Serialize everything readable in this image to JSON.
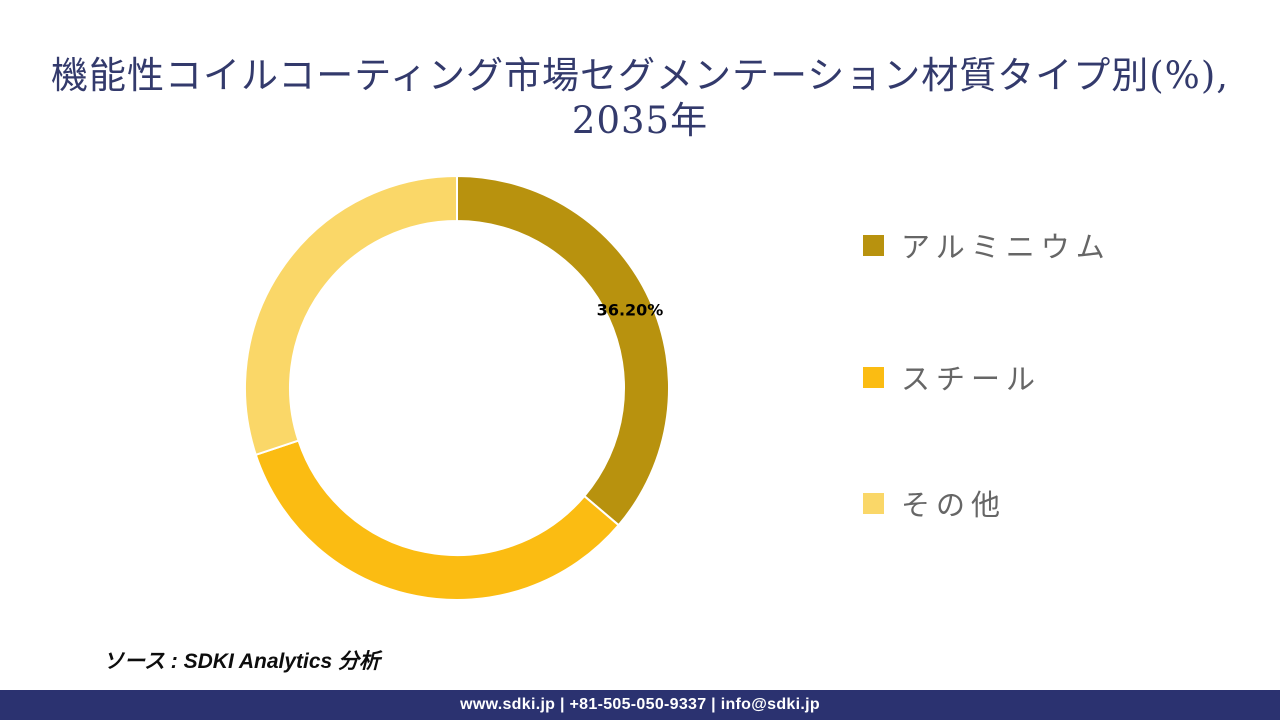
{
  "page": {
    "background": "#FFFFFF"
  },
  "title": {
    "line1": "機能性コイルコーティング市場セグメンテーション材質タイプ別(%),",
    "line2": "2035年",
    "color": "#333A6C"
  },
  "chart_data": {
    "type": "pie",
    "subtype": "donut",
    "title": "機能性コイルコーティング市場セグメンテーション材質タイプ別(%), 2035年",
    "categories": [
      "アルミニウム",
      "スチール",
      "その他"
    ],
    "values": [
      36.2,
      33.7,
      30.1
    ],
    "colors": [
      "#B8920E",
      "#FBBC12",
      "#FAD768"
    ],
    "data_label": "36.20%",
    "data_label_category": "アルミニウム",
    "start_angle_deg": 0,
    "direction": "clockwise",
    "inner_radius_ratio": 0.79,
    "legend_position": "right",
    "background": "#FFFFFF"
  },
  "legend": {
    "text_color": "#666666"
  },
  "source": {
    "text": "ソース : SDKI Analytics 分析"
  },
  "footer": {
    "text": "www.sdki.jp | +81-505-050-9337 | info@sdki.jp",
    "background": "#2B3270",
    "text_color": "#FFFFFF"
  }
}
